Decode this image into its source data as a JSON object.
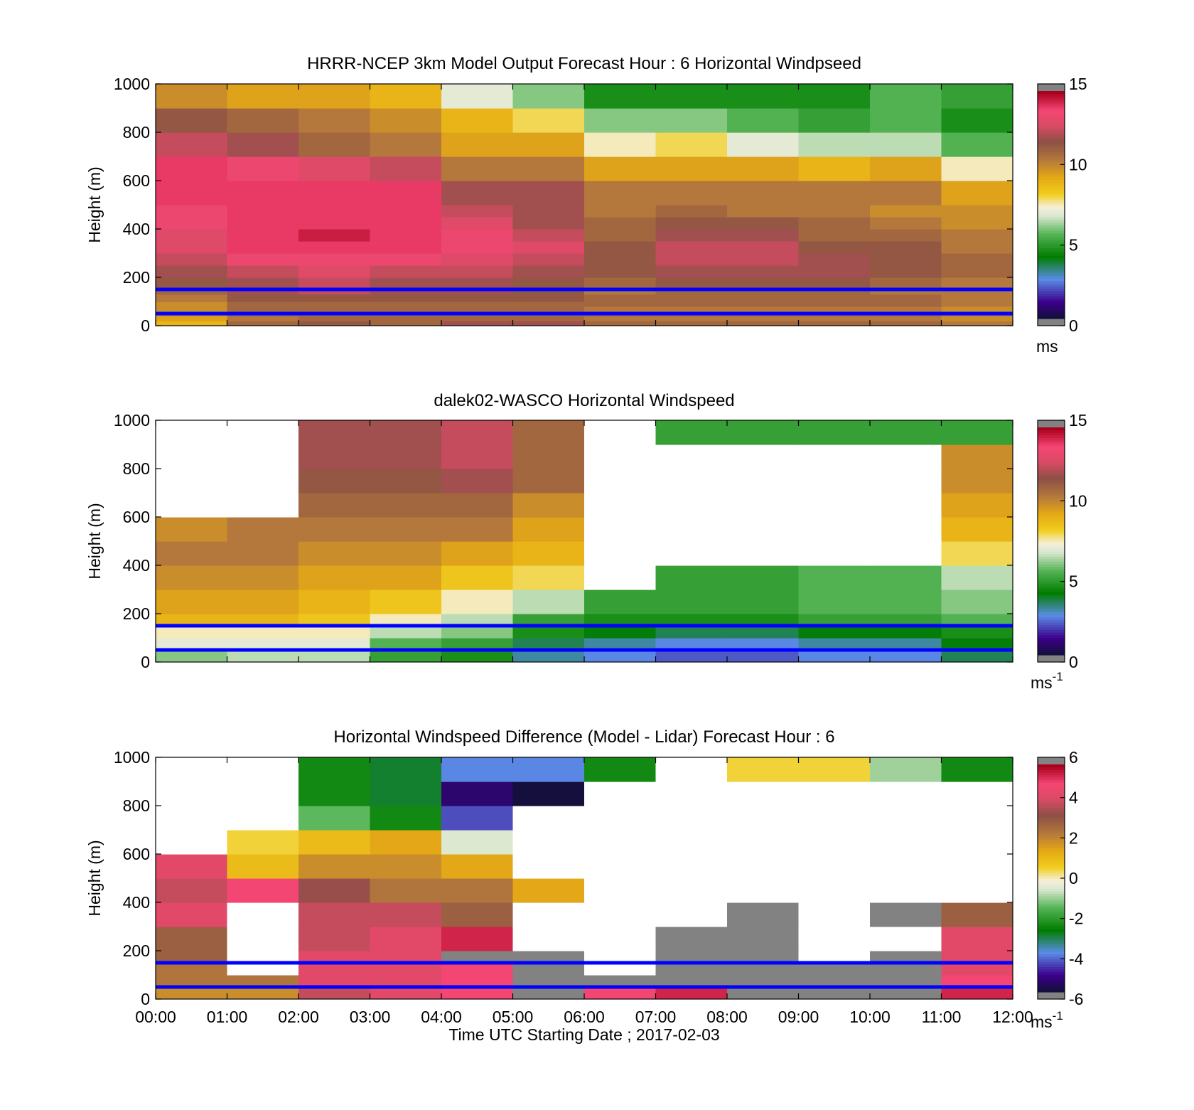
{
  "figure": {
    "xlabel": "Time UTC  Starting Date ; 2017-02-03",
    "ylabel": "Height (m)",
    "x_tick_labels": [
      "00:00",
      "01:00",
      "02:00",
      "03:00",
      "04:00",
      "05:00",
      "06:00",
      "07:00",
      "08:00",
      "09:00",
      "10:00",
      "11:00",
      "12:00"
    ],
    "y_tick_labels": [
      "0",
      "200",
      "400",
      "600",
      "800",
      "1000"
    ]
  },
  "chart_data": [
    {
      "type": "heatmap",
      "title": "HRRR-NCEP 3km Model Output   Forecast Hour : 6 Horizontal Windpseed",
      "xlabel": "",
      "ylabel": "Height (m)",
      "x_range": [
        "00:00",
        "12:00"
      ],
      "ylim": [
        0,
        1000
      ],
      "colorbar": {
        "range": [
          0,
          15
        ],
        "ticks": [
          0,
          5,
          10,
          15
        ],
        "units": "ms",
        "units_sup": ""
      },
      "reference_lines_m": [
        50,
        150
      ],
      "reference_line_color": "#0000ff",
      "x_bins_hours": [
        0,
        1,
        2,
        3,
        4,
        5,
        6,
        7,
        8,
        9,
        10,
        11,
        12
      ],
      "y_levels_m": [
        0,
        20,
        40,
        60,
        80,
        100,
        130,
        160,
        200,
        250,
        300,
        350,
        400,
        450,
        500,
        600,
        700,
        800,
        900,
        1000
      ],
      "windspeed_ms": [
        [
          9,
          11,
          11.5,
          11,
          12,
          12,
          11,
          11,
          11,
          11,
          11,
          10.5
        ],
        [
          9.5,
          10.5,
          11,
          11,
          11,
          11,
          10.5,
          10.5,
          10.5,
          10.5,
          10.5,
          10
        ],
        [
          10,
          11,
          11,
          11,
          11,
          11,
          11,
          11,
          11,
          11,
          11,
          10.5
        ],
        [
          10,
          11,
          11,
          11,
          11,
          11,
          10.5,
          10.5,
          10.5,
          10.5,
          10.5,
          10
        ],
        [
          10,
          11,
          11,
          11,
          11,
          11,
          11,
          11,
          11,
          11,
          11,
          10.5
        ],
        [
          10.5,
          11.5,
          11.5,
          11.5,
          11.5,
          11.5,
          11,
          11,
          11,
          11,
          11,
          10.5
        ],
        [
          11,
          12,
          12.5,
          12,
          12,
          11.5,
          10.5,
          11,
          11,
          11,
          10.5,
          10.5
        ],
        [
          11.5,
          12,
          12.5,
          12,
          12,
          11.5,
          11,
          11.5,
          11.5,
          11.5,
          11,
          10.5
        ],
        [
          12,
          12.5,
          13,
          12.5,
          12.5,
          12,
          11.5,
          12,
          12,
          12,
          11.5,
          11
        ],
        [
          12.5,
          13.5,
          13.5,
          13.5,
          13,
          12.5,
          11.5,
          12.5,
          12.5,
          12,
          11.5,
          11
        ],
        [
          13,
          14,
          14,
          14,
          13.5,
          13,
          11.5,
          12.5,
          12.5,
          11.5,
          11.5,
          10.5
        ],
        [
          13,
          14,
          14.5,
          14,
          13.5,
          12.5,
          11,
          12,
          12,
          11,
          11,
          10.5
        ],
        [
          13.5,
          14,
          14,
          14,
          13,
          12,
          11,
          11.5,
          11.5,
          11,
          10.5,
          10
        ],
        [
          13.5,
          14,
          14,
          14,
          12.5,
          12,
          10.5,
          11,
          10.5,
          10.5,
          10,
          10
        ],
        [
          14,
          14,
          14,
          14,
          12,
          12,
          10.5,
          10.5,
          10.5,
          10.5,
          10.5,
          9.5
        ],
        [
          14,
          13.5,
          13,
          12.5,
          10.5,
          10.5,
          9.5,
          9.5,
          9.5,
          9,
          9.5,
          7.5
        ],
        [
          12.5,
          12,
          11,
          10.5,
          9.5,
          9.5,
          7.5,
          8,
          7,
          6.5,
          6.5,
          5.5
        ],
        [
          11.5,
          11,
          10.5,
          10,
          9,
          8,
          6,
          6,
          5.5,
          5,
          5.5,
          4.5
        ],
        [
          10,
          9.5,
          9.5,
          9,
          7,
          6,
          4.5,
          4.5,
          4.5,
          4.5,
          5.5,
          5
        ]
      ]
    },
    {
      "type": "heatmap",
      "title": "dalek02-WASCO  Horizontal Windspeed",
      "xlabel": "",
      "ylabel": "Height (m)",
      "x_range": [
        "00:00",
        "12:00"
      ],
      "ylim": [
        0,
        1000
      ],
      "colorbar": {
        "range": [
          0,
          15
        ],
        "ticks": [
          0,
          5,
          10,
          15
        ],
        "units": "ms",
        "units_sup": "-1"
      },
      "reference_lines_m": [
        50,
        150
      ],
      "reference_line_color": "#0000ff",
      "missing_color": "#ffffff",
      "description_of_values": "lidar time-height windspeed; white = missing",
      "x_bins_hours": [
        0,
        1,
        2,
        3,
        4,
        5,
        6,
        7,
        8,
        9,
        10,
        11,
        12
      ],
      "y_levels_m": [
        0,
        50,
        100,
        150,
        200,
        300,
        400,
        500,
        600,
        700,
        800,
        900,
        1000
      ],
      "windspeed_ms": [
        [
          6,
          6.5,
          6.5,
          5,
          4.5,
          3,
          2.5,
          2,
          2,
          2.5,
          2.5,
          3.5
        ],
        [
          7,
          7,
          7,
          5.5,
          5,
          3.5,
          3,
          2.5,
          2.5,
          3,
          3,
          4
        ],
        [
          7.5,
          7.5,
          7.5,
          6.5,
          6,
          4.5,
          4,
          3.5,
          3.5,
          4,
          4,
          4.5
        ],
        [
          9,
          9,
          8.5,
          7.5,
          6.5,
          5,
          4.5,
          4.5,
          4.5,
          5,
          5,
          5.5
        ],
        [
          9.5,
          9.5,
          9,
          8.5,
          7.5,
          6.5,
          5,
          5,
          5,
          5.5,
          5.5,
          6
        ],
        [
          10,
          10,
          9.5,
          9.5,
          8.5,
          8,
          null,
          5,
          5,
          5.5,
          5.5,
          6.5
        ],
        [
          10.5,
          10.5,
          10,
          10,
          9.5,
          9,
          null,
          null,
          null,
          null,
          null,
          8
        ],
        [
          10,
          10.5,
          10.5,
          10.5,
          10.5,
          9.5,
          null,
          null,
          null,
          null,
          null,
          9
        ],
        [
          null,
          null,
          11,
          11,
          11,
          10,
          null,
          null,
          null,
          null,
          null,
          9.5
        ],
        [
          null,
          null,
          11.5,
          11.5,
          12,
          11,
          null,
          null,
          null,
          null,
          null,
          10
        ],
        [
          null,
          null,
          12,
          12,
          12.5,
          11,
          null,
          null,
          null,
          null,
          null,
          10
        ],
        [
          null,
          null,
          12,
          12,
          12.5,
          11,
          null,
          5,
          5,
          5,
          5,
          5
        ]
      ]
    },
    {
      "type": "heatmap",
      "title": "Horizontal Windspeed Difference (Model - Lidar) Forecast Hour : 6",
      "xlabel": "Time UTC  Starting Date ; 2017-02-03",
      "ylabel": "Height (m)",
      "x_range": [
        "00:00",
        "12:00"
      ],
      "ylim": [
        0,
        1000
      ],
      "colorbar": {
        "range": [
          -6,
          6
        ],
        "ticks": [
          -6,
          -4,
          -2,
          0,
          2,
          4,
          6
        ],
        "units": "ms",
        "units_sup": "-1"
      },
      "reference_lines_m": [
        50,
        150
      ],
      "reference_line_color": "#0000ff",
      "missing_color": "#ffffff",
      "x_bins_hours": [
        0,
        1,
        2,
        3,
        4,
        5,
        6,
        7,
        8,
        9,
        10,
        11,
        12
      ],
      "y_levels_m": [
        0,
        50,
        100,
        150,
        200,
        300,
        400,
        500,
        600,
        700,
        800,
        900,
        1000
      ],
      "difference_ms": [
        [
          2,
          2,
          4,
          4.5,
          5,
          6.5,
          5,
          5.5,
          6.5,
          6.5,
          6.5,
          5.5
        ],
        [
          2.5,
          2.5,
          4.5,
          4.5,
          5,
          6.5,
          6.5,
          6.5,
          6.5,
          6.5,
          6.5,
          5
        ],
        [
          2.5,
          null,
          4.5,
          4.5,
          5,
          6.5,
          null,
          6.5,
          6.5,
          6.5,
          6.5,
          4.5
        ],
        [
          3,
          null,
          4.5,
          4.5,
          6.5,
          6.5,
          null,
          6.5,
          6.5,
          null,
          6.5,
          4.5
        ],
        [
          3,
          null,
          4,
          4.5,
          5.5,
          null,
          null,
          6.5,
          6.5,
          null,
          null,
          4.5
        ],
        [
          4.5,
          null,
          4,
          4,
          3,
          null,
          null,
          null,
          6.5,
          null,
          6.5,
          3
        ],
        [
          4,
          5,
          3.5,
          2.5,
          2.5,
          1.5,
          null,
          null,
          null,
          null,
          null,
          null
        ],
        [
          4.5,
          1,
          2,
          2,
          1.5,
          null,
          null,
          null,
          null,
          null,
          null,
          null
        ],
        [
          null,
          0.5,
          1,
          1.5,
          -0.5,
          null,
          null,
          null,
          null,
          null,
          null,
          null
        ],
        [
          null,
          null,
          -1.5,
          -2.5,
          -4.5,
          null,
          null,
          null,
          null,
          null,
          null,
          null
        ],
        [
          null,
          null,
          -2.5,
          -3,
          -5.5,
          -6,
          null,
          null,
          null,
          null,
          null,
          null
        ],
        [
          null,
          null,
          -2.5,
          -3,
          -4,
          -4,
          -2.5,
          null,
          0.5,
          0.5,
          -1,
          -2.5
        ]
      ]
    }
  ]
}
